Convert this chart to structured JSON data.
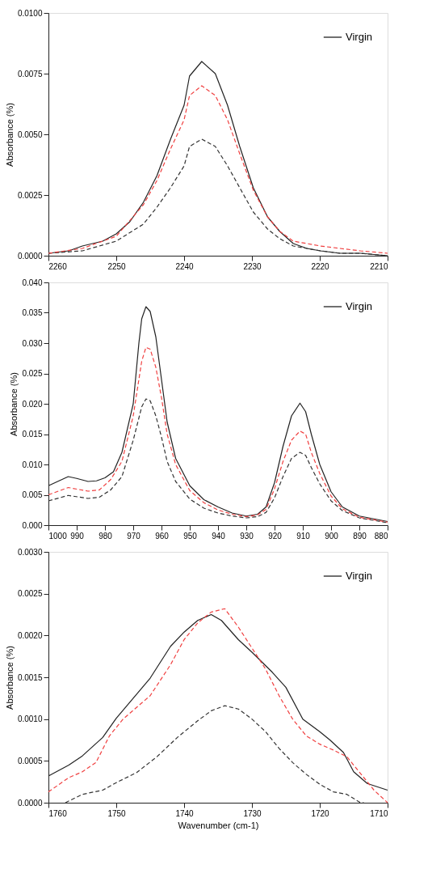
{
  "chart_data": [
    {
      "type": "line",
      "ylabel": "Absorbance (%)",
      "xlim": [
        2260,
        2210
      ],
      "xticks": [
        2260,
        2250,
        2240,
        2230,
        2220,
        2210
      ],
      "ylim": [
        0,
        0.01
      ],
      "yticks": [
        {
          "value": 0,
          "label": "0.0000"
        },
        {
          "value": 0.0025,
          "label": "0.0025"
        },
        {
          "value": 0.005,
          "label": "0.0050"
        },
        {
          "value": 0.0075,
          "label": "0.0075"
        },
        {
          "value": 0.01,
          "label": "0.0100"
        }
      ],
      "legend": "top right",
      "grid": false,
      "series": [
        {
          "name": "Virgin",
          "color": "#222222",
          "line_style": "solid",
          "x": [
            2260,
            2257,
            2255,
            2252,
            2250,
            2248,
            2246,
            2244,
            2242,
            2240,
            2239.2,
            2237.4,
            2235.4,
            2233.6,
            2231.8,
            2229.8,
            2227.7,
            2225.9,
            2223.9,
            2221.9,
            2219.9,
            2217,
            2214,
            2210
          ],
          "values": [
            0.0001,
            0.0002,
            0.0004,
            0.0006,
            0.0009,
            0.0014,
            0.0022,
            0.0033,
            0.0048,
            0.0062,
            0.0074,
            0.008,
            0.0075,
            0.0062,
            0.0045,
            0.0028,
            0.0016,
            0.001,
            0.0005,
            0.0003,
            0.0002,
            0.0001,
            0.0001,
            0
          ]
        },
        {
          "color": "#333333",
          "line_style": "dashed",
          "x": [
            2260,
            2255,
            2250,
            2246,
            2244,
            2242,
            2240,
            2239.2,
            2237.4,
            2235.4,
            2233.6,
            2231.8,
            2229.8,
            2227.7,
            2225.9,
            2223.9,
            2221.9,
            2219.9,
            2217,
            2214,
            2210
          ],
          "values": [
            0.0001,
            0.0002,
            0.0006,
            0.0013,
            0.002,
            0.0028,
            0.0037,
            0.0045,
            0.0048,
            0.0045,
            0.0037,
            0.0028,
            0.0018,
            0.0011,
            0.0007,
            0.0004,
            0.0003,
            0.0002,
            0.0001,
            0.0001,
            0
          ]
        },
        {
          "color": "#f04040",
          "line_style": "dashed",
          "x": [
            2260,
            2255,
            2250,
            2246,
            2244,
            2242,
            2240,
            2239.2,
            2237.4,
            2235.4,
            2233.6,
            2231.8,
            2229.8,
            2227.7,
            2225.9,
            2223.9,
            2221.9,
            2219.9,
            2217,
            2214,
            2210
          ],
          "values": [
            0.0001,
            0.0003,
            0.0008,
            0.0021,
            0.0031,
            0.0044,
            0.0056,
            0.0066,
            0.007,
            0.0066,
            0.0056,
            0.0042,
            0.0027,
            0.0016,
            0.001,
            0.0006,
            0.0005,
            0.0004,
            0.0003,
            0.0002,
            0.0001
          ]
        }
      ]
    },
    {
      "type": "line",
      "ylabel": "Absorbance (%)",
      "xlim": [
        1000,
        880
      ],
      "xticks": [
        1000,
        990,
        980,
        970,
        960,
        950,
        940,
        930,
        920,
        910,
        900,
        890,
        880
      ],
      "ylim": [
        0,
        0.04
      ],
      "yticks": [
        {
          "value": 0,
          "label": "0.000"
        },
        {
          "value": 0.005,
          "label": "0.005"
        },
        {
          "value": 0.01,
          "label": "0.010"
        },
        {
          "value": 0.015,
          "label": "0.015"
        },
        {
          "value": 0.02,
          "label": "0.020"
        },
        {
          "value": 0.025,
          "label": "0.025"
        },
        {
          "value": 0.03,
          "label": "0.030"
        },
        {
          "value": 0.035,
          "label": "0.035"
        },
        {
          "value": 0.04,
          "label": "0.040"
        }
      ],
      "legend": "top right",
      "grid": false,
      "series": [
        {
          "name": "Virgin",
          "color": "#222222",
          "line_style": "solid",
          "x": [
            1000,
            993,
            990,
            986,
            983,
            980,
            977,
            974,
            970,
            968,
            967,
            965.5,
            964,
            962,
            960,
            958,
            955,
            950,
            945,
            940,
            935,
            930,
            926,
            923,
            920,
            917,
            914,
            911,
            909,
            907,
            904,
            900,
            896,
            890,
            880
          ],
          "values": [
            0.0065,
            0.008,
            0.0077,
            0.0072,
            0.0073,
            0.0078,
            0.0088,
            0.012,
            0.02,
            0.03,
            0.034,
            0.036,
            0.0352,
            0.031,
            0.024,
            0.017,
            0.011,
            0.0065,
            0.0042,
            0.003,
            0.002,
            0.0015,
            0.0018,
            0.003,
            0.007,
            0.013,
            0.018,
            0.0201,
            0.0187,
            0.015,
            0.01,
            0.0055,
            0.003,
            0.0015,
            0.0006
          ]
        },
        {
          "color": "#333333",
          "line_style": "dashed",
          "x": [
            1000,
            993,
            986,
            982,
            978,
            974,
            970,
            967,
            965.5,
            964,
            962,
            960,
            958,
            955,
            950,
            945,
            940,
            935,
            930,
            926,
            923,
            920,
            917,
            914,
            911,
            909,
            907,
            904,
            900,
            896,
            890,
            880
          ],
          "values": [
            0.004,
            0.0049,
            0.0044,
            0.0046,
            0.0058,
            0.008,
            0.014,
            0.0195,
            0.0208,
            0.0205,
            0.018,
            0.0145,
            0.0105,
            0.0072,
            0.0043,
            0.0028,
            0.002,
            0.0015,
            0.0012,
            0.0014,
            0.0021,
            0.0045,
            0.008,
            0.011,
            0.012,
            0.0115,
            0.0095,
            0.0068,
            0.004,
            0.0024,
            0.0012,
            0.0004
          ]
        },
        {
          "color": "#f04040",
          "line_style": "dashed",
          "x": [
            1000,
            993,
            986,
            982,
            978,
            974,
            970,
            967,
            965.5,
            964,
            962,
            960,
            958,
            955,
            950,
            945,
            940,
            935,
            930,
            926,
            923,
            920,
            917,
            914,
            911,
            909,
            907,
            904,
            900,
            896,
            890,
            880
          ],
          "values": [
            0.005,
            0.0062,
            0.0056,
            0.0058,
            0.0075,
            0.0105,
            0.018,
            0.027,
            0.0293,
            0.029,
            0.026,
            0.021,
            0.015,
            0.01,
            0.0057,
            0.0037,
            0.0025,
            0.0018,
            0.0014,
            0.0017,
            0.0026,
            0.006,
            0.0105,
            0.014,
            0.0155,
            0.015,
            0.012,
            0.0085,
            0.0048,
            0.0027,
            0.0013,
            0.0005
          ]
        }
      ]
    },
    {
      "type": "line",
      "xlabel": "Wavenumber (cm-1)",
      "ylabel": "Absorbance (%)",
      "xlim": [
        1760,
        1710
      ],
      "xticks": [
        1760,
        1750,
        1740,
        1730,
        1720,
        1710
      ],
      "ylim": [
        0,
        0.003
      ],
      "yticks": [
        {
          "value": 0,
          "label": "0.0000"
        },
        {
          "value": 0.0005,
          "label": "0.0005"
        },
        {
          "value": 0.001,
          "label": "0.0010"
        },
        {
          "value": 0.0015,
          "label": "0.0015"
        },
        {
          "value": 0.002,
          "label": "0.0020"
        },
        {
          "value": 0.0025,
          "label": "0.0025"
        },
        {
          "value": 0.003,
          "label": "0.0030"
        }
      ],
      "legend": "top right",
      "grid": false,
      "series": [
        {
          "name": "Virgin",
          "color": "#222222",
          "line_style": "solid",
          "x": [
            1760,
            1757,
            1755,
            1752,
            1750,
            1745,
            1742,
            1740,
            1738,
            1736,
            1734.5,
            1732,
            1730,
            1727,
            1725,
            1722.5,
            1720,
            1718.5,
            1716.5,
            1715,
            1713,
            1710
          ],
          "values": [
            0.00032,
            0.00045,
            0.00056,
            0.00078,
            0.00101,
            0.00149,
            0.00187,
            0.00204,
            0.00218,
            0.00225,
            0.00218,
            0.00195,
            0.0018,
            0.00156,
            0.00138,
            0.001,
            0.00085,
            0.00075,
            0.0006,
            0.00037,
            0.00023,
            0.00015
          ]
        },
        {
          "color": "#333333",
          "line_style": "dashed",
          "x": [
            1757.5,
            1755,
            1752,
            1750,
            1747,
            1744,
            1741,
            1738,
            1736,
            1734,
            1732,
            1730,
            1728,
            1726,
            1724,
            1722,
            1720,
            1718,
            1716,
            1714,
            1713.5
          ],
          "values": [
            0,
            0.0001,
            0.00015,
            0.00024,
            0.00036,
            0.00055,
            0.00078,
            0.00098,
            0.0011,
            0.00116,
            0.00112,
            0.001,
            0.00085,
            0.00065,
            0.00048,
            0.00034,
            0.00022,
            0.00013,
            0.0001,
            0,
            0
          ]
        },
        {
          "color": "#f04040",
          "line_style": "dashed",
          "x": [
            1760,
            1757,
            1755,
            1753,
            1751,
            1749,
            1745,
            1742,
            1740,
            1738,
            1736,
            1734,
            1732,
            1730,
            1728,
            1726,
            1724,
            1722,
            1720,
            1718,
            1716,
            1714,
            1712,
            1710
          ],
          "values": [
            0.00013,
            0.0003,
            0.00037,
            0.00048,
            0.0008,
            0.001,
            0.00128,
            0.00165,
            0.00195,
            0.00215,
            0.00228,
            0.00232,
            0.0021,
            0.00185,
            0.0016,
            0.00128,
            0.001,
            0.0008,
            0.0007,
            0.00063,
            0.00055,
            0.00035,
            0.00015,
            0
          ]
        }
      ]
    }
  ]
}
